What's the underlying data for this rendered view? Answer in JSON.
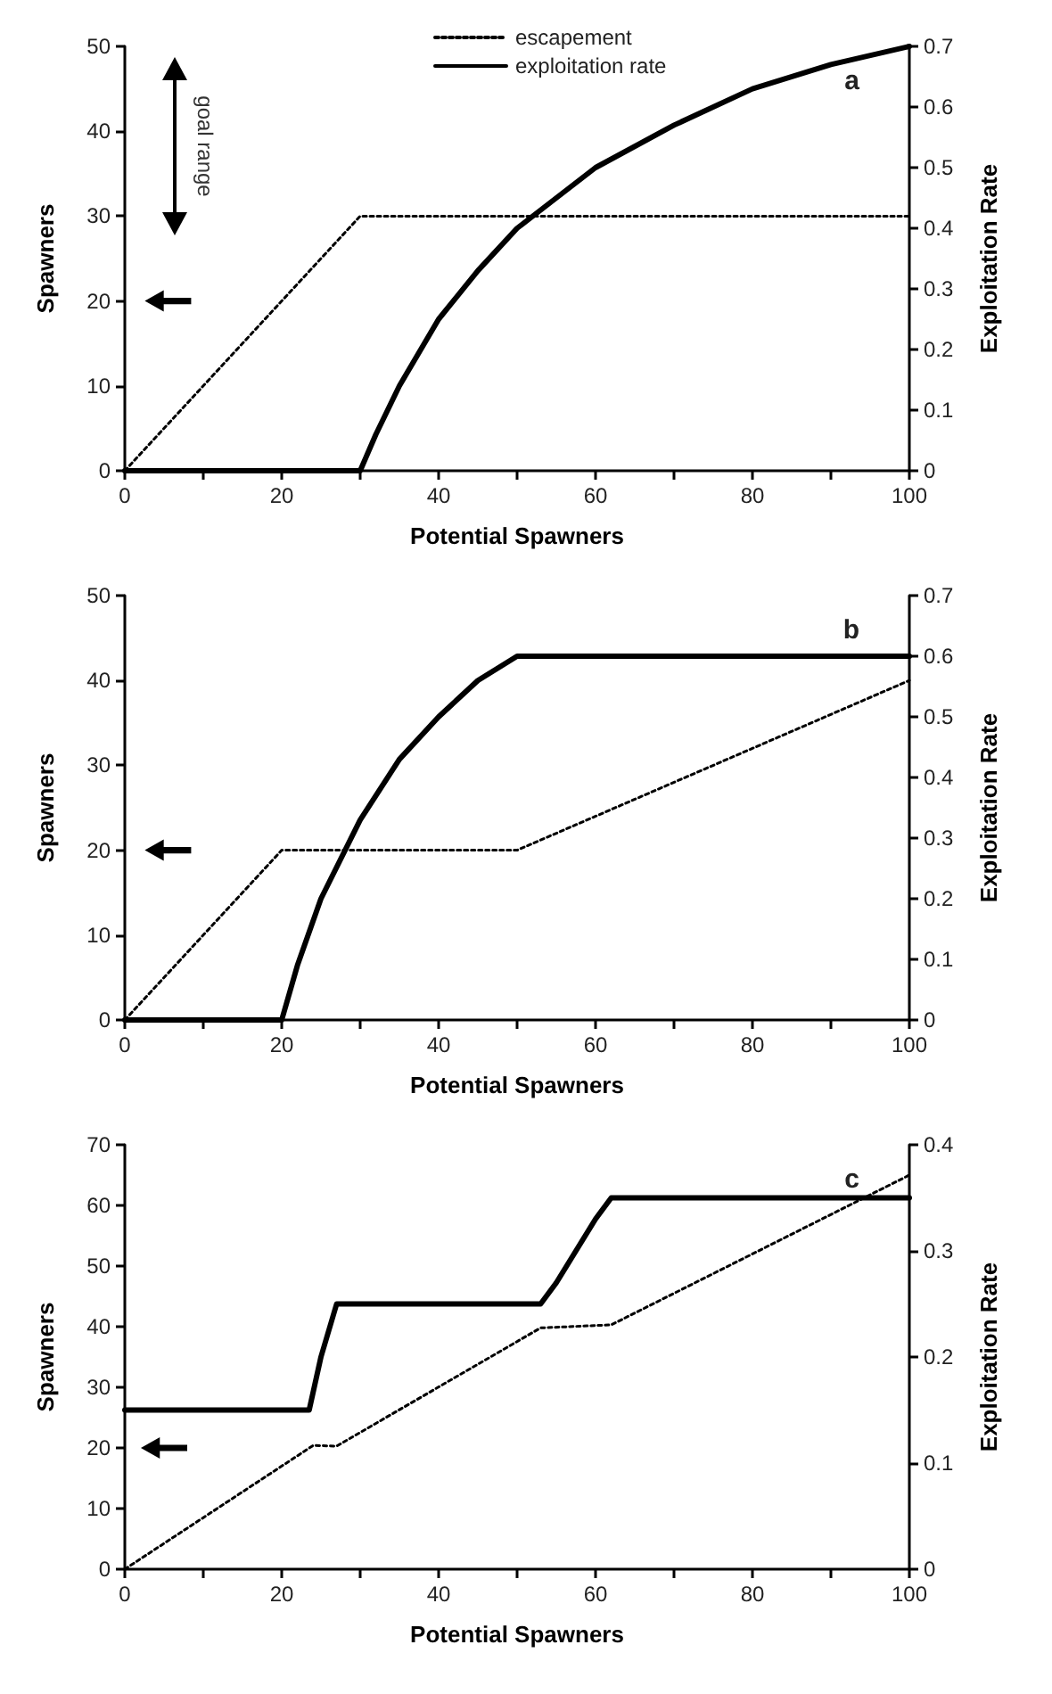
{
  "chart_data": [
    {
      "type": "line",
      "xlabel": "Potential Spawners",
      "ylabel": "Spawners",
      "y2label": "Exploitation Rate",
      "annotations": [
        "a",
        "goal range"
      ],
      "legend": "top",
      "marker": "none",
      "xlim": [
        0,
        100
      ],
      "xticks": [
        0,
        {
          "value": 10,
          "label": null
        },
        20,
        {
          "value": 30,
          "label": null
        },
        40,
        {
          "value": 50,
          "label": null
        },
        60,
        {
          "value": 70,
          "label": null
        },
        80,
        {
          "value": 90,
          "label": null
        },
        100
      ],
      "ylim": [
        0,
        50
      ],
      "yticks": [
        0,
        10,
        20,
        30,
        40,
        50
      ],
      "y2lim": [
        0,
        0.7
      ],
      "y2ticks": [
        0,
        0.1,
        0.2,
        0.3,
        0.4,
        0.5,
        0.6,
        0.7
      ],
      "series": [
        {
          "name": "escapement",
          "color": "#000000",
          "line_style": "dotted",
          "x": [
            0,
            30,
            100
          ],
          "values": [
            0,
            30,
            30
          ]
        },
        {
          "name": "exploitation rate",
          "color": "#000000",
          "line_style": "solid",
          "axis": "y2",
          "x": [
            0,
            30,
            32,
            35,
            40,
            45,
            50,
            55,
            60,
            70,
            80,
            90,
            100
          ],
          "values": [
            0,
            0,
            0.06,
            0.14,
            0.25,
            0.33,
            0.4,
            0.45,
            0.5,
            0.57,
            0.63,
            0.67,
            0.7
          ]
        },
        {
          "type": "scatter",
          "marker": "triangle",
          "color": "#000000",
          "x": [
            5.5
          ],
          "values": [
            20
          ]
        }
      ]
    },
    {
      "type": "line",
      "xlabel": "Potential Spawners",
      "ylabel": "Spawners",
      "y2label": "Exploitation Rate",
      "annotations": [
        "b"
      ],
      "marker": "none",
      "xlim": [
        0,
        100
      ],
      "xticks": [
        0,
        {
          "value": 10,
          "label": null
        },
        20,
        {
          "value": 30,
          "label": null
        },
        40,
        {
          "value": 50,
          "label": null
        },
        60,
        {
          "value": 70,
          "label": null
        },
        80,
        {
          "value": 90,
          "label": null
        },
        100
      ],
      "ylim": [
        0,
        50
      ],
      "yticks": [
        0,
        10,
        20,
        30,
        40,
        50
      ],
      "y2lim": [
        0,
        0.7
      ],
      "y2ticks": [
        0,
        0.1,
        0.2,
        0.3,
        0.4,
        0.5,
        0.6,
        0.7
      ],
      "series": [
        {
          "color": "#000000",
          "line_style": "dotted",
          "x": [
            0,
            20,
            50,
            100
          ],
          "values": [
            0,
            20,
            20,
            40
          ]
        },
        {
          "color": "#000000",
          "line_style": "solid",
          "axis": "y2",
          "x": [
            0,
            20,
            22,
            25,
            30,
            35,
            40,
            45,
            50,
            100
          ],
          "values": [
            0,
            0,
            0.09,
            0.2,
            0.33,
            0.43,
            0.5,
            0.56,
            0.6,
            0.6
          ]
        },
        {
          "type": "scatter",
          "marker": "triangle",
          "color": "#000000",
          "x": [
            5.5
          ],
          "values": [
            20
          ]
        }
      ]
    },
    {
      "type": "line",
      "xlabel": "Potential Spawners",
      "ylabel": "Spawners",
      "y2label": "Exploitation Rate",
      "annotations": [
        "c"
      ],
      "marker": "none",
      "xlim": [
        0,
        100
      ],
      "xticks": [
        0,
        {
          "value": 10,
          "label": null
        },
        20,
        {
          "value": 30,
          "label": null
        },
        40,
        {
          "value": 50,
          "label": null
        },
        60,
        {
          "value": 70,
          "label": null
        },
        80,
        {
          "value": 90,
          "label": null
        },
        100
      ],
      "ylim": [
        0,
        70
      ],
      "yticks": [
        0,
        10,
        20,
        30,
        40,
        50,
        60,
        70
      ],
      "y2lim": [
        0,
        0.4
      ],
      "y2ticks": [
        0,
        0.1,
        0.2,
        0.3,
        0.4
      ],
      "series": [
        {
          "color": "#000000",
          "line_style": "dotted",
          "x": [
            0,
            24,
            27,
            53,
            62,
            100
          ],
          "values": [
            0,
            20.4,
            20.3,
            39.8,
            40.3,
            65
          ]
        },
        {
          "color": "#000000",
          "line_style": "solid",
          "axis": "y2",
          "x": [
            0,
            23.5,
            25,
            27,
            53,
            55,
            60,
            62,
            100
          ],
          "values": [
            0.15,
            0.15,
            0.2,
            0.25,
            0.25,
            0.27,
            0.33,
            0.35,
            0.35
          ]
        },
        {
          "type": "scatter",
          "marker": "triangle",
          "color": "#000000",
          "x": [
            5
          ],
          "values": [
            20
          ]
        }
      ]
    }
  ]
}
